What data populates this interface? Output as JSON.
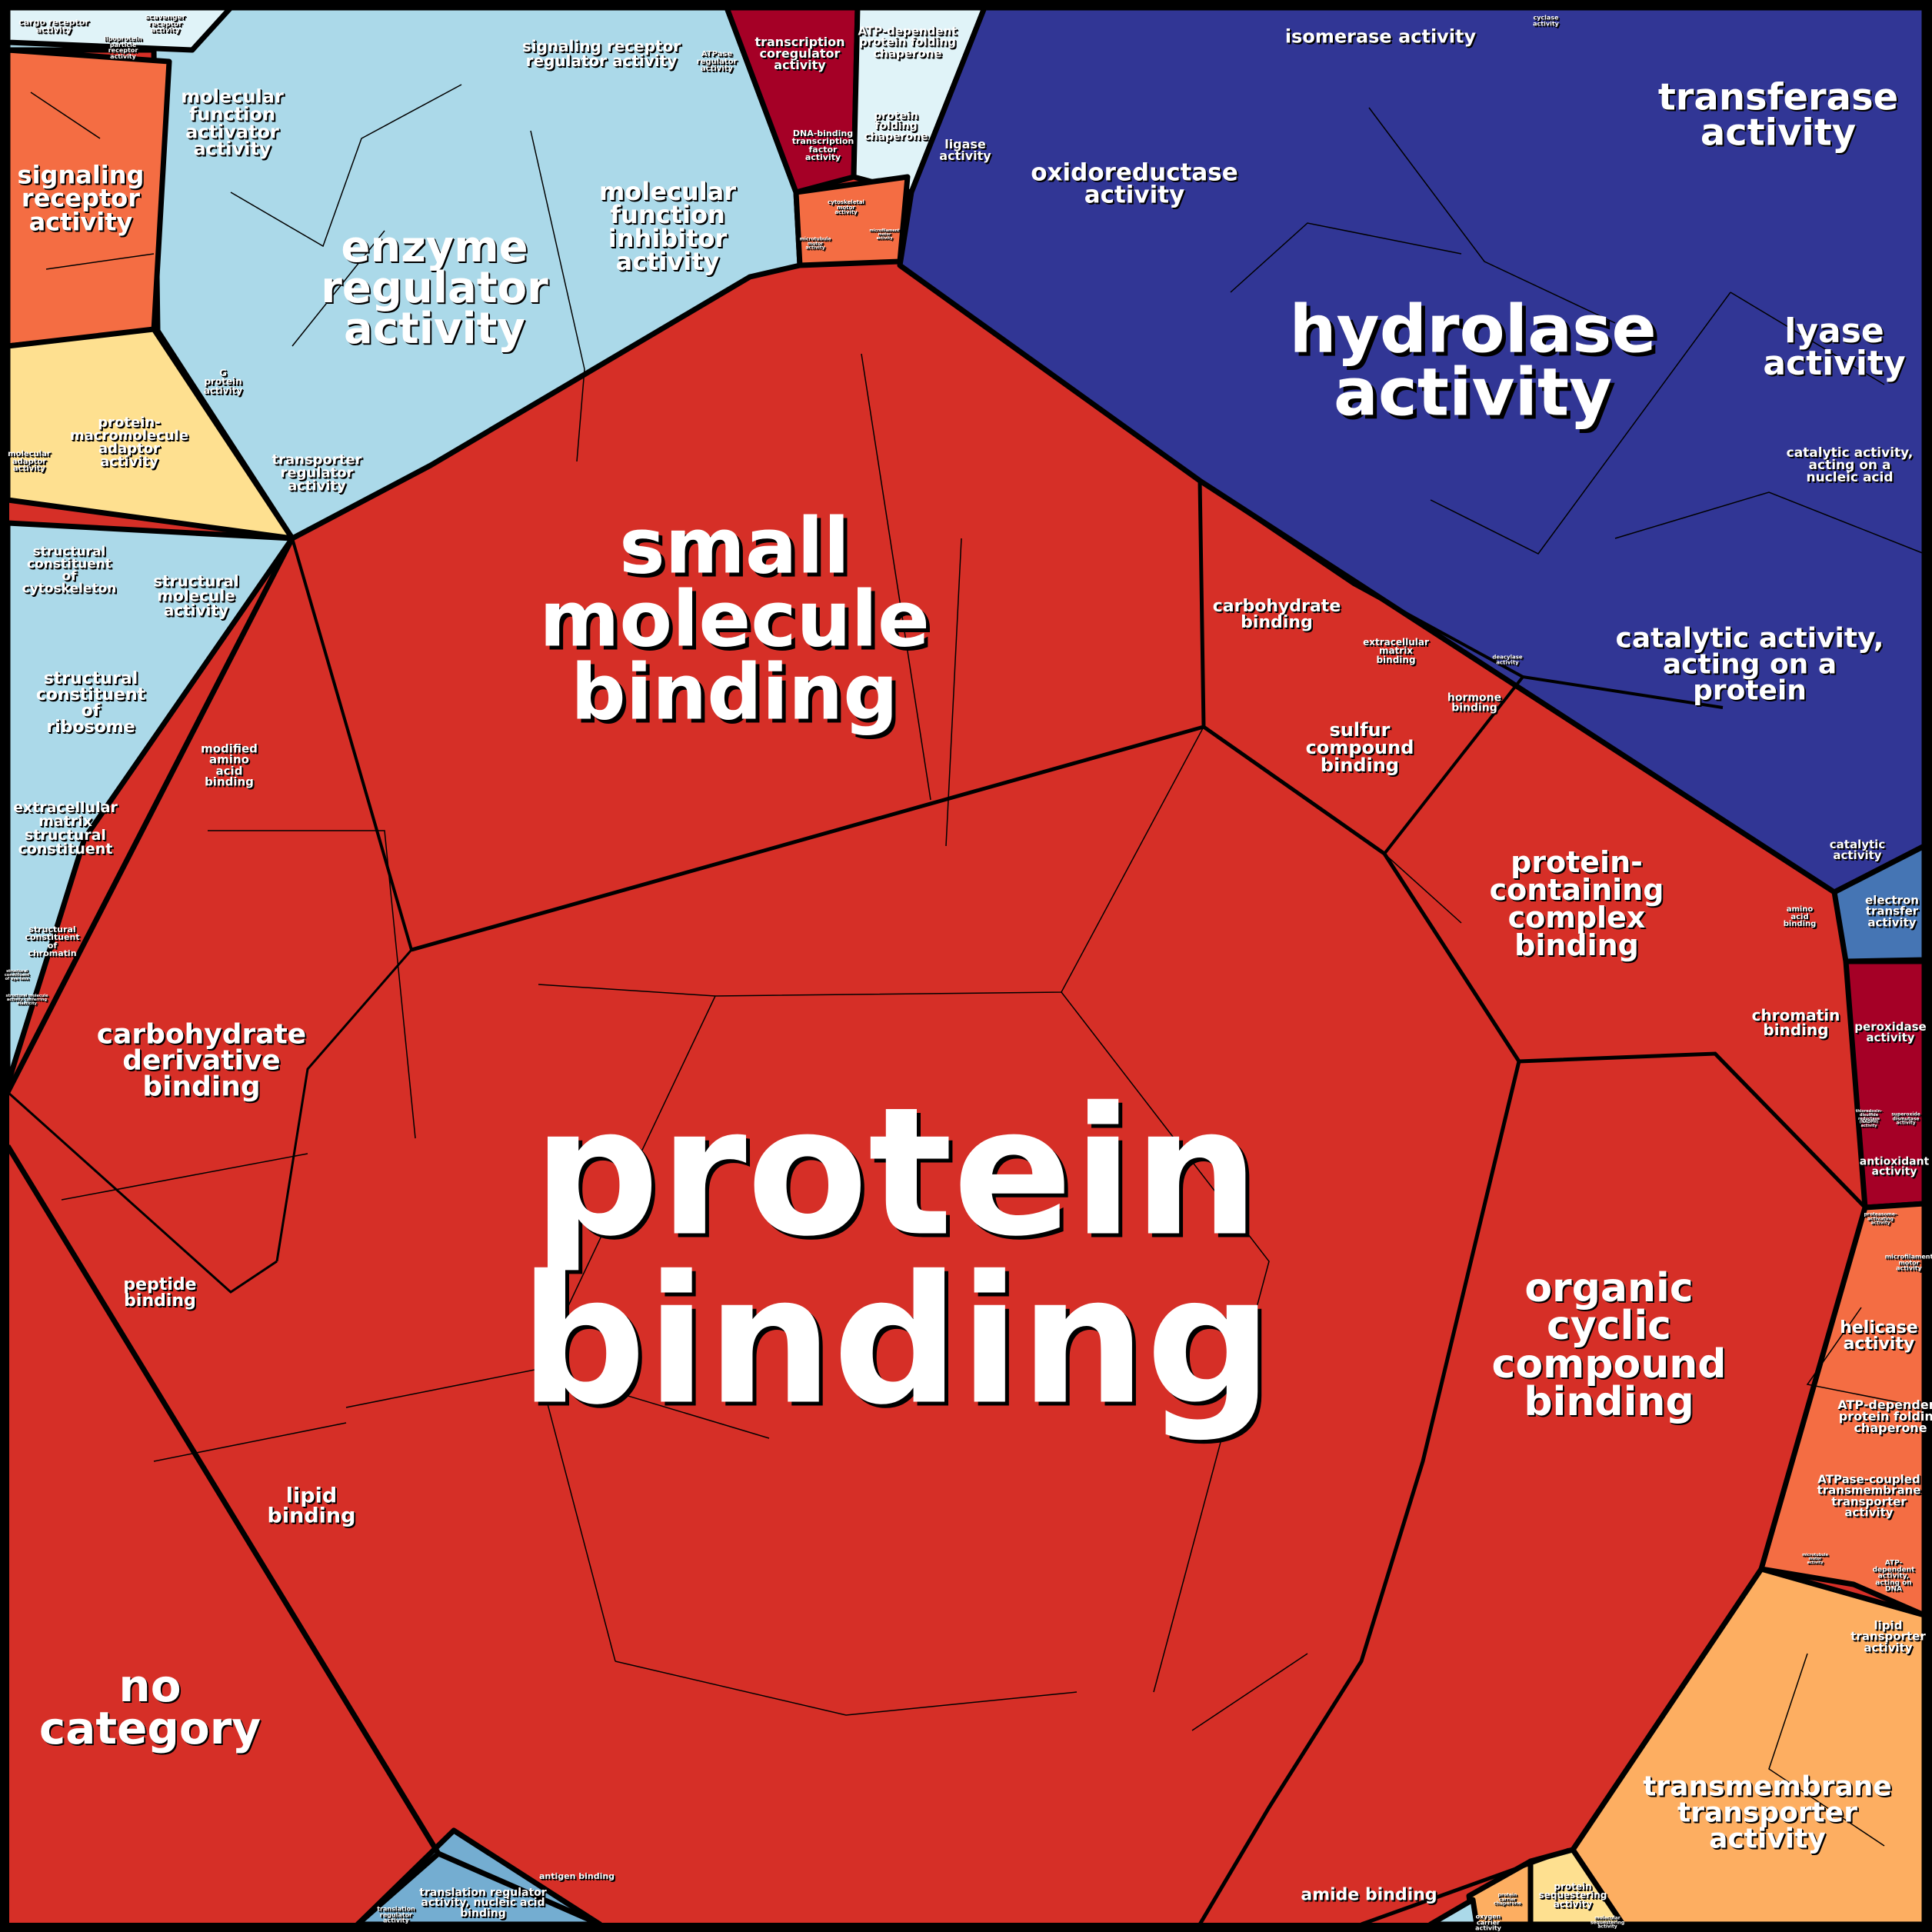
{
  "colors": {
    "binding": "#d62f27",
    "regulator": "#abd9e9",
    "regulator_light": "#e0f3f8",
    "catalytic": "#313695",
    "orange": "#f46d43",
    "dark_red": "#a50026",
    "yellow": "#fee090",
    "light_orange": "#fdae61",
    "steel_blue": "#4575b4",
    "mid_blue": "#74add1",
    "border": "#000000"
  },
  "labels": [
    "cargo receptor\nactivity",
    "lipoprotein\nparticle\nreceptor\nactivity",
    "scavenger\nreceptor\nactivity",
    "signaling\nreceptor\nactivity",
    "molecular\nfunction\nactivator\nactivity",
    "enzyme\nregulator\nactivity",
    "signaling receptor\nregulator activity",
    "ATPase\nregulator\nactivity",
    "molecular\nfunction\ninhibitor\nactivity",
    "G\nprotein\nactivity",
    "transporter\nregulator\nactivity",
    "protein-\nmacromolecule\nadaptor\nactivity",
    "molecular\nadaptor\nactivity",
    "structural\nconstituent\nof\ncytoskeleton",
    "structural\nmolecule\nactivity",
    "structural\nconstituent\nof\nribosome",
    "extracellular\nmatrix\nstructural\nconstituent",
    "structural\nconstituent\nof\nchromatin",
    "structural\nconstituent\nof eye lens",
    "structural molecule\nactivity conferring\nelasticity",
    "transcription\ncoregulator\nactivity",
    "DNA-binding\ntranscription\nfactor\nactivity",
    "ATP-dependent\nprotein folding\nchaperone",
    "protein\nfolding\nchaperone",
    "cytoskeletal\nmotor\nactivity",
    "microtubule\nmotor\nactivity",
    "microfilament\nmotor\nactivity",
    "ligase\nactivity",
    "isomerase activity",
    "cyclase\nactivity",
    "transferase\nactivity",
    "oxidoreductase\nactivity",
    "hydrolase\nactivity",
    "lyase\nactivity",
    "catalytic activity,\nacting on a\nnucleic acid",
    "catalytic activity,\nacting on a\nprotein",
    "deacylase\nactivity",
    "catalytic\nactivity",
    "electron\ntransfer\nactivity",
    "peroxidase\nactivity",
    "thioredoxin-\ndisulfide\nreductase\n(NADPH)\nactivity",
    "superoxide\ndismutase\nactivity",
    "antioxidant\nactivity",
    "proteasome-\nactivating\nactivity",
    "microfilament\nmotor\nactivity",
    "helicase\nactivity",
    "ATP-dependent\nprotein folding\nchaperone",
    "ATPase-coupled\ntransmembrane\ntransporter\nactivity",
    "ATP-\ndependent\nactivity,\nacting on\nDNA",
    "microtubule\nmotor\nactivity",
    "lipid\ntransporter\nactivity",
    "transmembrane\ntransporter\nactivity",
    "protein\nsequestering\nactivity",
    "antigen binding",
    "translation regulator\nactivity, nucleic acid\nbinding",
    "translation\nregulator\nactivity",
    "amide binding",
    "protein\nbinding",
    "no\ncategory",
    "organic\ncyclic\ncompound\nbinding",
    "protein-\ncontaining\ncomplex\nbinding",
    "chromatin\nbinding",
    "amino\nacid\nbinding",
    "sulfur\ncompound\nbinding",
    "hormone\nbinding",
    "extracellular\nmatrix\nbinding",
    "carbohydrate\nbinding",
    "small\nmolecule\nbinding",
    "modified\namino\nacid\nbinding",
    "carbohydrate\nderivative\nbinding",
    "peptide\nbinding",
    "lipid\nbinding",
    "oxygen\ncarrier\nactivity",
    "protein\ncarrier\nchaperone",
    "molecular\nsequestering\nactivity"
  ]
}
